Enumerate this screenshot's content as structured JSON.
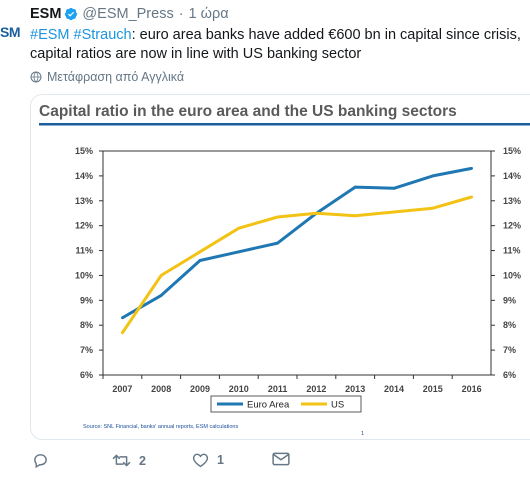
{
  "tweet": {
    "avatar_text": "SM",
    "author": "ESM",
    "handle": "@ESM_Press",
    "separator": "·",
    "time": "1 ώρα",
    "hashtag1": "#ESM",
    "hashtag2": "#Strauch",
    "body": ": euro area banks have added €600 bn in capital since crisis, capital ratios are now in line with US banking sector",
    "translate_label": "Μετάφραση από Αγγλικά"
  },
  "actions": {
    "reply_count": "",
    "retweet_count": "2",
    "like_count": "1"
  },
  "chart_data": {
    "type": "line",
    "title": "Capital ratio in the euro area and the US banking sectors",
    "categories": [
      "2007",
      "2008",
      "2009",
      "2010",
      "2011",
      "2012",
      "2013",
      "2014",
      "2015",
      "2016"
    ],
    "series": [
      {
        "name": "Euro Area",
        "values": [
          8.3,
          9.2,
          10.6,
          10.95,
          11.3,
          12.5,
          13.55,
          13.5,
          14.0,
          14.3
        ],
        "color": "#1f77b4"
      },
      {
        "name": "US",
        "values": [
          7.7,
          10.0,
          10.95,
          11.9,
          12.35,
          12.5,
          12.4,
          12.55,
          12.7,
          13.15
        ],
        "color": "#f2c314"
      }
    ],
    "ylim": [
      6,
      15
    ],
    "yticks": [
      "6%",
      "7%",
      "8%",
      "9%",
      "10%",
      "11%",
      "12%",
      "13%",
      "14%",
      "15%"
    ],
    "legend_position": "bottom",
    "source": "Source: SNL Financial, banks' annual reports, ESM calculations",
    "page_number": "1"
  }
}
